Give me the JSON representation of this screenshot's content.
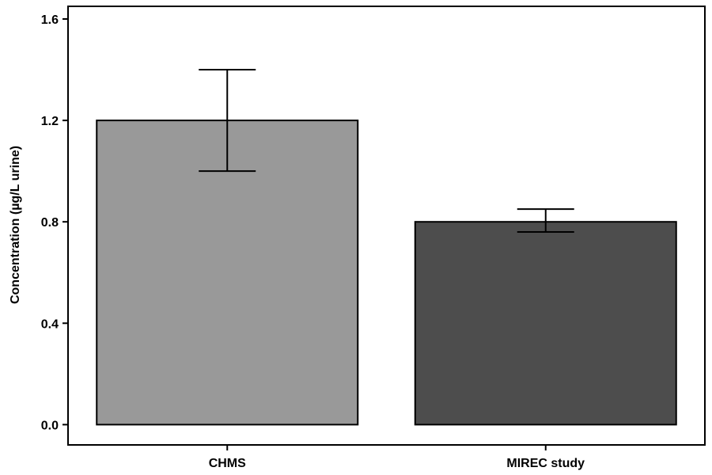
{
  "chart_data": {
    "type": "bar",
    "title": "",
    "xlabel": "",
    "ylabel": "Concentration (µg/L urine)",
    "categories": [
      "CHMS",
      "MIREC study"
    ],
    "values": [
      1.2,
      0.8
    ],
    "error_bars": [
      {
        "low": 1.0,
        "high": 1.4
      },
      {
        "low": 0.76,
        "high": 0.85
      }
    ],
    "colors": [
      "#999999",
      "#4d4d4d"
    ],
    "ylim": [
      -0.08,
      1.65
    ],
    "yticks": [
      0.0,
      0.4,
      0.8,
      1.2,
      1.6
    ],
    "ytick_labels": [
      "0.0",
      "0.4",
      "0.8",
      "1.2",
      "1.6"
    ],
    "grid": false,
    "legend": "none"
  }
}
